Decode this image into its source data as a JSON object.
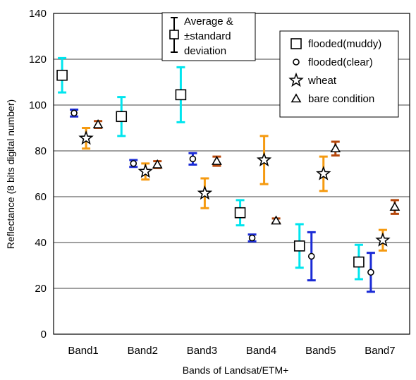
{
  "chart_data": {
    "type": "scatter",
    "title": "",
    "xlabel": "Bands of Landsat/ETM+",
    "ylabel": "Reflectance (8 bits digital number)",
    "ylim": [
      0,
      140
    ],
    "yticks": [
      0,
      20,
      40,
      60,
      80,
      100,
      120,
      140
    ],
    "categories": [
      "Band1",
      "Band2",
      "Band3",
      "Band4",
      "Band5",
      "Band7"
    ],
    "grid": "horizontal",
    "error_bar_legend": [
      "Average &",
      "±standard",
      "deviation"
    ],
    "legend_position": "top-right",
    "series": [
      {
        "name": "flooded(muddy)",
        "marker": "square",
        "error_color": "#00e5ee",
        "mean": [
          113,
          95,
          104.5,
          53,
          38.5,
          31.5
        ],
        "sd": [
          7.5,
          8.5,
          12,
          5.5,
          9.5,
          7.5
        ]
      },
      {
        "name": "flooded(clear)",
        "marker": "circle",
        "error_color": "#1a2bd6",
        "mean": [
          96.5,
          74.5,
          76.5,
          42,
          34,
          27
        ],
        "sd": [
          1.5,
          1.5,
          2.5,
          1.5,
          10.5,
          8.5
        ]
      },
      {
        "name": "wheat",
        "marker": "star",
        "error_color": "#f59a10",
        "mean": [
          85.5,
          71,
          61.5,
          76,
          70,
          41
        ],
        "sd": [
          4.5,
          3.5,
          6.5,
          10.5,
          7.5,
          4.5
        ]
      },
      {
        "name": "bare condition",
        "marker": "triangle",
        "error_color": "#b5470b",
        "mean": [
          91.5,
          74,
          75.5,
          49.5,
          81,
          55.5
        ],
        "sd": [
          1.5,
          1.5,
          2,
          1,
          3,
          3
        ]
      }
    ]
  }
}
